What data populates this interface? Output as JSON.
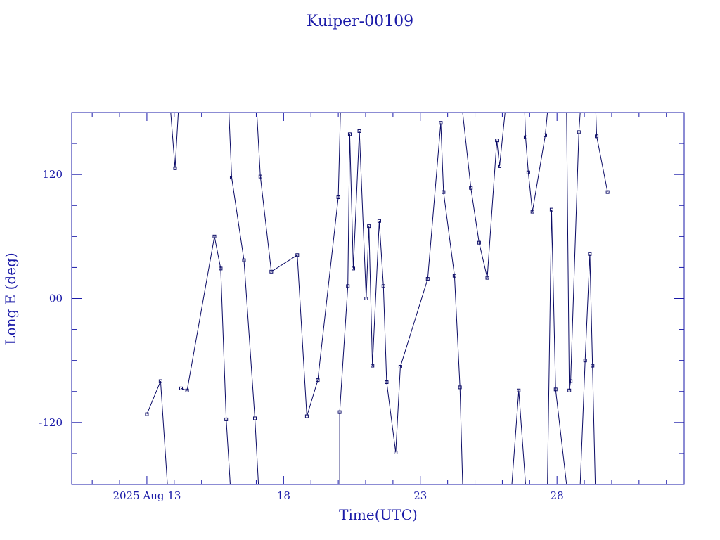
{
  "chart_data": {
    "type": "line",
    "title": "Kuiper-00109",
    "xlabel": "Time(UTC)",
    "ylabel": "Long E (deg)",
    "x_units": "days of August 2025",
    "xlim": [
      10.25,
      32.65
    ],
    "ylim": [
      -180,
      180
    ],
    "x_tick_labels": [
      {
        "x": 13,
        "label": "2025 Aug 13"
      },
      {
        "x": 18,
        "label": "18"
      },
      {
        "x": 23,
        "label": "23"
      },
      {
        "x": 28,
        "label": "28"
      }
    ],
    "y_tick_labels": [
      {
        "y": 120,
        "label": "120"
      },
      {
        "y": 0,
        "label": "00"
      },
      {
        "y": -120,
        "label": "-120"
      }
    ],
    "grid": false,
    "legend": "none",
    "points": [
      [
        13.0,
        -112
      ],
      [
        13.5,
        -80
      ],
      [
        14.03,
        126
      ],
      [
        14.25,
        -87
      ],
      [
        14.47,
        -89
      ],
      [
        15.47,
        60
      ],
      [
        15.7,
        29
      ],
      [
        15.9,
        -117
      ],
      [
        16.1,
        117
      ],
      [
        16.55,
        37
      ],
      [
        16.95,
        -116
      ],
      [
        17.15,
        118
      ],
      [
        17.55,
        26
      ],
      [
        18.5,
        42
      ],
      [
        18.85,
        -114
      ],
      [
        19.25,
        -79
      ],
      [
        20.0,
        98
      ],
      [
        20.05,
        -110
      ],
      [
        20.35,
        12
      ],
      [
        20.42,
        159
      ],
      [
        20.55,
        29
      ],
      [
        20.77,
        162
      ],
      [
        21.02,
        0
      ],
      [
        21.12,
        70
      ],
      [
        21.25,
        -65
      ],
      [
        21.5,
        75
      ],
      [
        21.65,
        12
      ],
      [
        21.77,
        -81
      ],
      [
        22.1,
        -149
      ],
      [
        22.27,
        -66
      ],
      [
        23.27,
        19
      ],
      [
        23.75,
        170
      ],
      [
        23.85,
        103
      ],
      [
        24.25,
        22
      ],
      [
        24.45,
        -86
      ],
      [
        24.85,
        107
      ],
      [
        25.15,
        54
      ],
      [
        25.45,
        20
      ],
      [
        25.8,
        153
      ],
      [
        25.9,
        128
      ],
      [
        26.6,
        -89
      ],
      [
        26.85,
        156
      ],
      [
        26.95,
        122
      ],
      [
        27.1,
        84
      ],
      [
        27.57,
        158
      ],
      [
        27.8,
        86
      ],
      [
        27.95,
        -88
      ],
      [
        28.45,
        -89
      ],
      [
        28.5,
        -80
      ],
      [
        28.8,
        161
      ],
      [
        29.03,
        -60
      ],
      [
        29.2,
        43
      ],
      [
        29.3,
        -65
      ],
      [
        29.45,
        157
      ],
      [
        29.85,
        103
      ]
    ],
    "segments": [
      [
        [
          13.0,
          -112
        ],
        [
          13.5,
          -80
        ],
        [
          13.75,
          -180
        ]
      ],
      [
        [
          13.87,
          180
        ],
        [
          14.03,
          126
        ],
        [
          14.15,
          180
        ]
      ],
      [
        [
          14.25,
          -180
        ],
        [
          14.25,
          -87
        ],
        [
          14.47,
          -89
        ],
        [
          15.47,
          60
        ],
        [
          15.7,
          29
        ],
        [
          15.9,
          -117
        ],
        [
          16.05,
          -180
        ]
      ],
      [
        [
          16.0,
          180
        ],
        [
          16.1,
          117
        ],
        [
          16.55,
          37
        ],
        [
          16.95,
          -116
        ],
        [
          17.08,
          -180
        ]
      ],
      [
        [
          17.02,
          180
        ],
        [
          17.15,
          118
        ],
        [
          17.55,
          26
        ],
        [
          18.5,
          42
        ],
        [
          18.85,
          -114
        ],
        [
          19.25,
          -79
        ],
        [
          20.0,
          98
        ],
        [
          20.08,
          180
        ]
      ],
      [
        [
          20.05,
          -180
        ],
        [
          20.05,
          -110
        ],
        [
          20.35,
          12
        ],
        [
          20.42,
          159
        ],
        [
          20.55,
          29
        ],
        [
          20.77,
          162
        ],
        [
          21.02,
          0
        ],
        [
          21.12,
          70
        ],
        [
          21.25,
          -65
        ],
        [
          21.5,
          75
        ],
        [
          21.65,
          12
        ],
        [
          21.77,
          -81
        ],
        [
          22.1,
          -149
        ],
        [
          22.27,
          -66
        ],
        [
          23.27,
          19
        ],
        [
          23.75,
          170
        ],
        [
          23.85,
          103
        ],
        [
          24.25,
          22
        ],
        [
          24.45,
          -86
        ],
        [
          24.55,
          -180
        ]
      ],
      [
        [
          24.55,
          180
        ],
        [
          24.85,
          107
        ],
        [
          25.15,
          54
        ],
        [
          25.45,
          20
        ],
        [
          25.8,
          153
        ],
        [
          25.9,
          128
        ],
        [
          26.1,
          180
        ]
      ],
      [
        [
          26.35,
          -180
        ],
        [
          26.6,
          -89
        ],
        [
          26.85,
          -180
        ]
      ],
      [
        [
          26.82,
          180
        ],
        [
          26.85,
          156
        ],
        [
          26.95,
          122
        ],
        [
          27.1,
          84
        ],
        [
          27.57,
          158
        ],
        [
          27.65,
          180
        ]
      ],
      [
        [
          27.65,
          -180
        ],
        [
          27.8,
          86
        ],
        [
          27.95,
          -88
        ],
        [
          28.35,
          -180
        ]
      ],
      [
        [
          28.35,
          180
        ],
        [
          28.45,
          -89
        ],
        [
          28.5,
          -80
        ],
        [
          28.8,
          161
        ],
        [
          28.85,
          180
        ]
      ],
      [
        [
          28.85,
          -180
        ],
        [
          29.03,
          -60
        ],
        [
          29.2,
          43
        ],
        [
          29.3,
          -65
        ],
        [
          29.4,
          -180
        ]
      ],
      [
        [
          29.42,
          180
        ],
        [
          29.45,
          157
        ],
        [
          29.85,
          103
        ]
      ]
    ]
  }
}
